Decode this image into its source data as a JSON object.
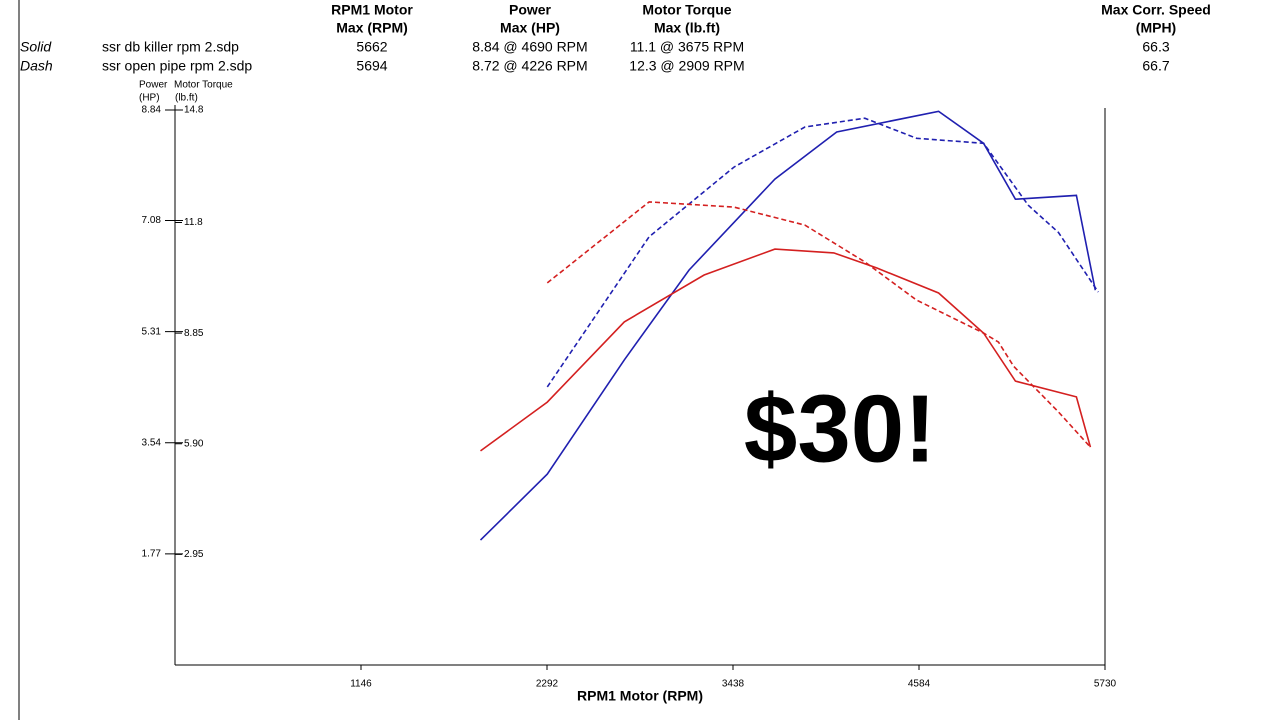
{
  "header": {
    "columns": [
      [
        "RPM1 Motor",
        "Max (RPM)"
      ],
      [
        "Power",
        "Max (HP)"
      ],
      [
        "Motor Torque",
        "Max (lb.ft)"
      ],
      [
        "Max Corr. Speed",
        "(MPH)"
      ]
    ],
    "rows": [
      [
        "Solid",
        "ssr db killer rpm 2.sdp",
        "5662",
        "8.84 @ 4690 RPM",
        "11.1 @ 3675 RPM",
        "66.3"
      ],
      [
        "Dash",
        "ssr open pipe rpm 2.sdp",
        "5694",
        "8.72 @ 4226 RPM",
        "12.3 @ 2909 RPM",
        "66.7"
      ]
    ]
  },
  "overlay_text": "$30!",
  "chart_data": {
    "type": "line",
    "xlabel": "RPM1 Motor (RPM)",
    "ylabel": [
      "Power",
      "(HP)"
    ],
    "y2label": [
      "Motor Torque",
      "(lb.ft)"
    ],
    "ylabel_color": "#2020b0",
    "y2label_color": "#d42020",
    "xlim": [
      0,
      5730
    ],
    "xticks": [
      1146,
      2292,
      3438,
      4584,
      5730
    ],
    "ylim": [
      0,
      8.84
    ],
    "yticks": [
      1.77,
      3.54,
      5.31,
      7.08,
      8.84
    ],
    "y2lim": [
      0,
      14.8
    ],
    "y2ticks": [
      2.95,
      {
        "value": 5.9,
        "label": "5.90"
      },
      8.85,
      11.8,
      14.8
    ],
    "grid": false,
    "series": [
      {
        "color": "#2020b0",
        "dashed": false,
        "x": [
          1882,
          2294,
          2768,
          3167,
          3696,
          4077,
          4705,
          4982,
          5178,
          5554,
          5670
        ],
        "values": [
          1.99,
          3.04,
          4.86,
          6.29,
          7.74,
          8.49,
          8.82,
          8.31,
          7.42,
          7.48,
          5.97
        ]
      },
      {
        "color": "#d42020",
        "dashed": false,
        "axis": "y2",
        "x": [
          1882,
          2294,
          2768,
          3260,
          3696,
          4059,
          4323,
          4705,
          4982,
          5178,
          5554,
          5640
        ],
        "values": [
          5.71,
          7.01,
          9.15,
          10.4,
          11.09,
          10.99,
          10.59,
          9.92,
          8.85,
          7.57,
          7.15,
          5.81
        ]
      },
      {
        "color": "#2020b0",
        "dashed": true,
        "x": [
          2294,
          2921,
          3444,
          3881,
          4250,
          4569,
          4982,
          5258,
          5443,
          5689
        ],
        "values": [
          4.43,
          6.82,
          7.93,
          8.57,
          8.71,
          8.39,
          8.31,
          7.32,
          6.89,
          5.94
        ]
      },
      {
        "color": "#d42020",
        "dashed": true,
        "axis": "y2",
        "x": [
          2294,
          2921,
          3444,
          3881,
          4250,
          4569,
          4982,
          5074,
          5166,
          5443,
          5640
        ],
        "values": [
          10.19,
          12.35,
          12.21,
          11.73,
          10.75,
          9.73,
          8.85,
          8.61,
          7.97,
          6.75,
          5.81
        ]
      }
    ]
  }
}
